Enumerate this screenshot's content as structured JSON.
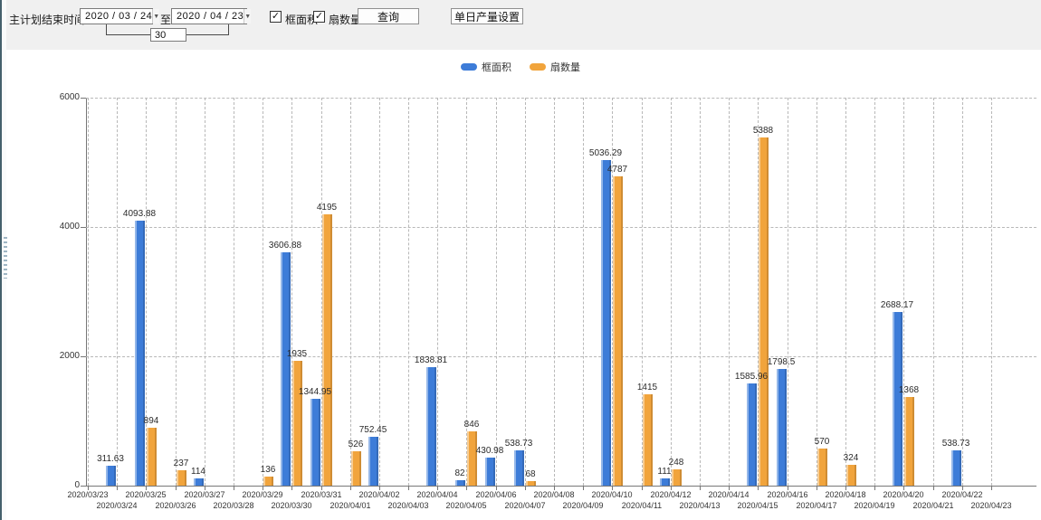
{
  "toolbar": {
    "label_plan_end_time": "主计划结束时间:",
    "date_from": "2020 / 03 / 24",
    "label_to": "至:",
    "date_to": "2020 / 04 / 23",
    "interval_days": "30",
    "checkbox_frame_area": {
      "label": "框面积",
      "checked": true
    },
    "checkbox_sash_count": {
      "label": "扇数量",
      "checked": true
    },
    "button_query": "查询",
    "button_daily_output": "单日产量设置",
    "dropdown_glyph": "▼",
    "check_glyph": "✓"
  },
  "chart_data": {
    "type": "bar",
    "title": "",
    "categories": [
      "2020/03/23",
      "2020/03/24",
      "2020/03/25",
      "2020/03/26",
      "2020/03/27",
      "2020/03/28",
      "2020/03/29",
      "2020/03/30",
      "2020/03/31",
      "2020/04/01",
      "2020/04/02",
      "2020/04/03",
      "2020/04/04",
      "2020/04/05",
      "2020/04/06",
      "2020/04/07",
      "2020/04/08",
      "2020/04/09",
      "2020/04/10",
      "2020/04/11",
      "2020/04/12",
      "2020/04/13",
      "2020/04/14",
      "2020/04/15",
      "2020/04/16",
      "2020/04/17",
      "2020/04/18",
      "2020/04/19",
      "2020/04/20",
      "2020/04/21",
      "2020/04/22",
      "2020/04/23"
    ],
    "series": [
      {
        "name": "框面积",
        "color": "#3D7CD8",
        "values": [
          null,
          311.63,
          4093.88,
          null,
          114,
          null,
          null,
          3606.88,
          1344.95,
          null,
          752.45,
          null,
          1838.81,
          82,
          430.98,
          538.73,
          null,
          null,
          5036.29,
          null,
          111,
          null,
          null,
          1585.96,
          1798.5,
          null,
          null,
          null,
          2688.17,
          null,
          538.73,
          null
        ]
      },
      {
        "name": "扇数量",
        "color": "#F1A43C",
        "values": [
          null,
          null,
          894,
          237,
          null,
          null,
          136,
          1935,
          4195,
          526,
          null,
          null,
          null,
          846,
          null,
          68,
          null,
          null,
          4787,
          1415,
          248,
          null,
          null,
          5388,
          null,
          570,
          324,
          null,
          1368,
          null,
          null,
          null
        ]
      }
    ],
    "ylim": [
      0,
      6000
    ],
    "yticks": [
      0,
      2000,
      4000,
      6000
    ],
    "grid": true,
    "legend_position": "top-center",
    "x_label_style": "staggered-two-rows"
  }
}
